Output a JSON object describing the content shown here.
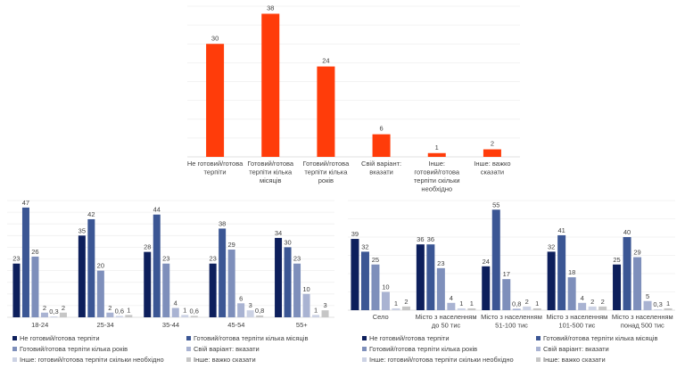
{
  "chart_data": [
    {
      "id": "overall",
      "type": "bar",
      "title": "",
      "xlabel": "",
      "ylabel": "",
      "ylim": [
        0,
        40
      ],
      "grid": true,
      "color": "#ff3c0a",
      "categories": [
        "Не готовий/готова терпіти",
        "Готовий/готова терпіти кілька місяців",
        "Готовий/готова терпіти кілька років",
        "Свій варіант: вказати",
        "Інше: готовий/готова терпіти скільки необхідно",
        "Інше: важко сказати"
      ],
      "category_lines": [
        [
          "Не готовий/готова",
          "терпіти"
        ],
        [
          "Готовий/готова",
          "терпіти кілька",
          "місяців"
        ],
        [
          "Готовий/готова",
          "терпіти кілька",
          "років"
        ],
        [
          "Свій варіант:",
          "вказати"
        ],
        [
          "Інше:",
          "готовий/готова",
          "терпіти скільки",
          "необхідно"
        ],
        [
          "Інше: важко",
          "сказати"
        ]
      ],
      "values": [
        30,
        38,
        24,
        6,
        1,
        2
      ],
      "value_labels": [
        "30",
        "38",
        "24",
        "6",
        "1",
        "2"
      ]
    },
    {
      "id": "by-age",
      "type": "bar",
      "title": "",
      "xlabel": "",
      "ylabel": "",
      "ylim": [
        0,
        50
      ],
      "grid": true,
      "legend_position": "bottom",
      "categories": [
        "18-24",
        "25-34",
        "35-44",
        "45-54",
        "55+"
      ],
      "category_lines": [
        [
          "18-24"
        ],
        [
          "25-34"
        ],
        [
          "35-44"
        ],
        [
          "45-54"
        ],
        [
          "55+"
        ]
      ],
      "series": [
        {
          "name": "Не готовий/готова терпіти",
          "color": "#0d1f5c",
          "values": [
            23,
            35,
            28,
            23,
            34
          ],
          "labels": [
            "23",
            "35",
            "28",
            "23",
            "34"
          ]
        },
        {
          "name": "Готовий/готова терпіти кілька місяців",
          "color": "#3b5694",
          "values": [
            47,
            42,
            44,
            38,
            30
          ],
          "labels": [
            "47",
            "42",
            "44",
            "38",
            "30"
          ]
        },
        {
          "name": "Готовий/готова терпіти кілька років",
          "color": "#7e8fbb",
          "values": [
            26,
            20,
            23,
            29,
            23
          ],
          "labels": [
            "26",
            "20",
            "23",
            "29",
            "23"
          ]
        },
        {
          "name": "Свій варіант: вказати",
          "color": "#a9b3d2",
          "values": [
            2,
            2,
            4,
            6,
            10
          ],
          "labels": [
            "2",
            "2",
            "4",
            "6",
            "10"
          ]
        },
        {
          "name": "Інше: готовий/готова терпіти скільки необхідно",
          "color": "#ccd2e4",
          "values": [
            0.3,
            0.6,
            1,
            3,
            1
          ],
          "labels": [
            "0,3",
            "0,6",
            "1",
            "3",
            "1"
          ]
        },
        {
          "name": "Інше: важко сказати",
          "color": "#c6c6c6",
          "values": [
            2,
            1,
            0.6,
            0.8,
            3
          ],
          "labels": [
            "2",
            "1",
            "0,6",
            "0,8",
            "3"
          ]
        }
      ]
    },
    {
      "id": "by-settlement",
      "type": "bar",
      "title": "",
      "xlabel": "",
      "ylabel": "",
      "ylim": [
        0,
        60
      ],
      "grid": true,
      "legend_position": "bottom",
      "categories": [
        "Село",
        "Місто з населенням до 50 тис",
        "Місто з населенням 51-100 тис",
        "Місто з населенням 101-500 тис",
        "Місто з населенням понад 500 тис"
      ],
      "category_lines": [
        [
          "Село"
        ],
        [
          "Місто з населенням",
          "до 50 тис"
        ],
        [
          "Місто з населенням",
          "51-100 тис"
        ],
        [
          "Місто з населенням",
          "101-500 тис"
        ],
        [
          "Місто з населенням",
          "понад 500 тис"
        ]
      ],
      "series": [
        {
          "name": "Не готовий/готова терпіти",
          "color": "#0d1f5c",
          "values": [
            39,
            36,
            24,
            32,
            25
          ],
          "labels": [
            "39",
            "36",
            "24",
            "32",
            "25"
          ]
        },
        {
          "name": "Готовий/готова терпіти кілька місяців",
          "color": "#3b5694",
          "values": [
            32,
            36,
            55,
            41,
            40
          ],
          "labels": [
            "32",
            "36",
            "55",
            "41",
            "40"
          ]
        },
        {
          "name": "Готовий/готова терпіти кілька років",
          "color": "#7e8fbb",
          "values": [
            25,
            23,
            17,
            18,
            29
          ],
          "labels": [
            "25",
            "23",
            "17",
            "18",
            "29"
          ]
        },
        {
          "name": "Свій варіант: вказати",
          "color": "#a9b3d2",
          "values": [
            10,
            4,
            0.8,
            4,
            5
          ],
          "labels": [
            "10",
            "4",
            "0,8",
            "4",
            "5"
          ]
        },
        {
          "name": "Інше: готовий/готова терпіти скільки необхідно",
          "color": "#ccd2e4",
          "values": [
            1,
            1,
            2,
            2,
            0.3
          ],
          "labels": [
            "1",
            "1",
            "2",
            "2",
            "0,3"
          ]
        },
        {
          "name": "Інше: важко сказати",
          "color": "#c6c6c6",
          "values": [
            2,
            1,
            1,
            2,
            1
          ],
          "labels": [
            "2",
            "1",
            "1",
            "2",
            "1"
          ]
        }
      ]
    }
  ]
}
